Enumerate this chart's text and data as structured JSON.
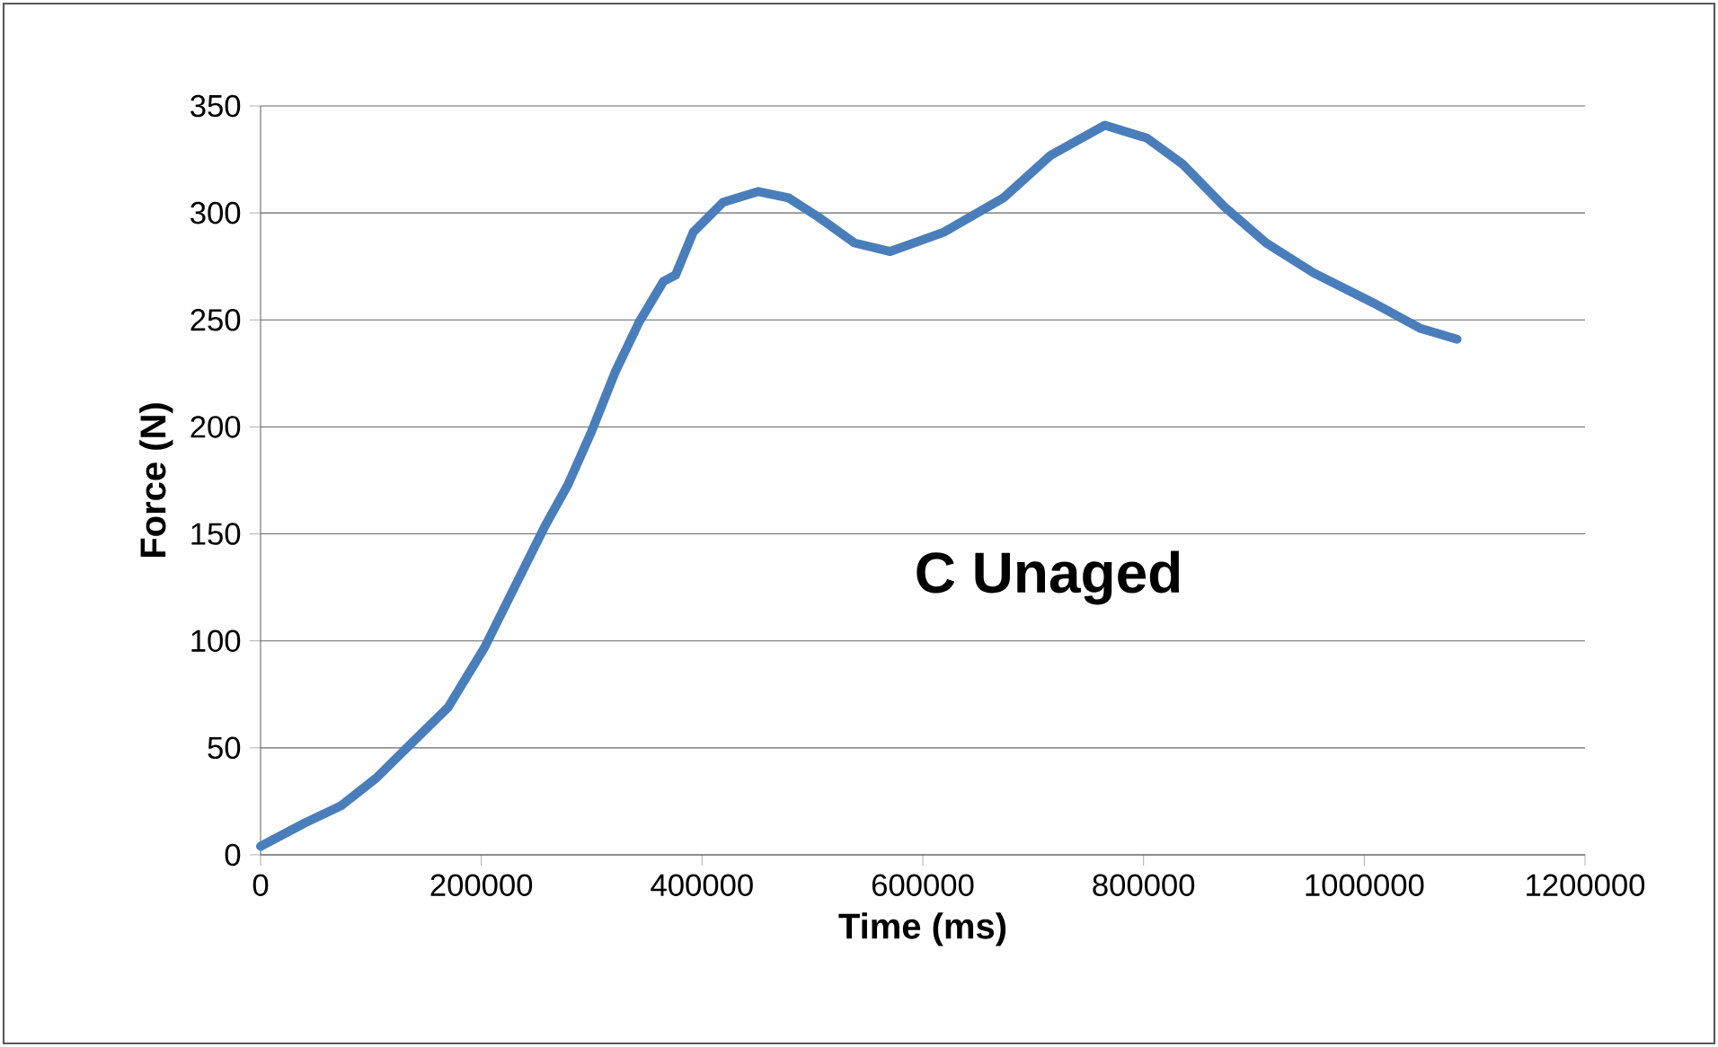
{
  "chart_data": {
    "type": "line",
    "xlabel": "Time (ms)",
    "ylabel": "Force (N)",
    "annotations": [
      "C Unaged"
    ],
    "xlim": [
      0,
      1200000
    ],
    "xticks": [
      0,
      200000,
      400000,
      600000,
      800000,
      1000000,
      1200000
    ],
    "ylim": [
      0,
      350
    ],
    "yticks": [
      0,
      50,
      100,
      150,
      200,
      250,
      300,
      350
    ],
    "grid": "y",
    "series": [
      {
        "color": "#4a7ebb",
        "x": [
          0,
          40500,
          73000,
          105000,
          132500,
          170000,
          203000,
          230000,
          257000,
          278500,
          300000,
          321600,
          343000,
          365000,
          376000,
          392000,
          419000,
          451000,
          478500,
          505600,
          538000,
          570500,
          619000,
          673000,
          716000,
          765000,
          803000,
          835000,
          873000,
          911000,
          954000,
          1008000,
          1051000,
          1084000
        ],
        "values": [
          4,
          15,
          23,
          36,
          50,
          69,
          97,
          125,
          153,
          173,
          198,
          226,
          249,
          268,
          271,
          291,
          305,
          310,
          307,
          298,
          286,
          282,
          291,
          307,
          327,
          341,
          335,
          323,
          303,
          286,
          272,
          258,
          246,
          241
        ]
      }
    ]
  }
}
